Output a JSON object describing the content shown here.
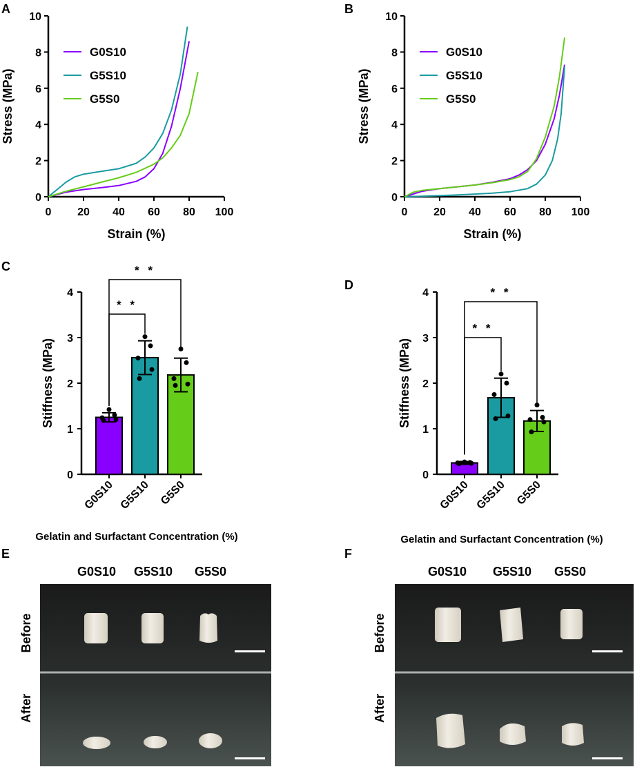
{
  "panel_labels": [
    "A",
    "B",
    "C",
    "D",
    "E",
    "F"
  ],
  "colors": {
    "G0S10": "#8a00ff",
    "G5S10": "#1a9ba1",
    "G5S0": "#66cc1a"
  },
  "chart_data": [
    {
      "id": "A",
      "type": "line",
      "xlabel": "Strain (%)",
      "ylabel": "Stress (MPa)",
      "xlim": [
        0,
        100
      ],
      "ylim": [
        0,
        10
      ],
      "xticks": [
        "0",
        "20",
        "40",
        "60",
        "80",
        "100"
      ],
      "yticks": [
        "0",
        "2",
        "4",
        "6",
        "8",
        "10"
      ],
      "legend_position": "top-left",
      "series": [
        {
          "name": "G0S10",
          "color": "#8a00ff",
          "x": [
            0,
            10,
            20,
            30,
            40,
            50,
            55,
            60,
            65,
            70,
            75,
            80
          ],
          "y": [
            0,
            0.25,
            0.4,
            0.5,
            0.62,
            0.85,
            1.1,
            1.55,
            2.4,
            3.9,
            6.0,
            8.6
          ]
        },
        {
          "name": "G5S10",
          "color": "#1a9ba1",
          "x": [
            0,
            5,
            10,
            15,
            20,
            30,
            40,
            50,
            55,
            60,
            65,
            70,
            75,
            79
          ],
          "y": [
            0,
            0.4,
            0.8,
            1.1,
            1.25,
            1.4,
            1.55,
            1.85,
            2.2,
            2.7,
            3.5,
            4.8,
            6.8,
            9.4
          ]
        },
        {
          "name": "G5S0",
          "color": "#66cc1a",
          "x": [
            0,
            10,
            20,
            30,
            40,
            50,
            60,
            65,
            70,
            75,
            80,
            85
          ],
          "y": [
            0,
            0.3,
            0.55,
            0.8,
            1.05,
            1.35,
            1.8,
            2.15,
            2.7,
            3.4,
            4.6,
            6.9
          ]
        }
      ]
    },
    {
      "id": "B",
      "type": "line",
      "xlabel": "Strain (%)",
      "ylabel": "Stress (MPa)",
      "xlim": [
        0,
        100
      ],
      "ylim": [
        0,
        10
      ],
      "xticks": [
        "0",
        "20",
        "40",
        "60",
        "80",
        "100"
      ],
      "yticks": [
        "0",
        "2",
        "4",
        "6",
        "8",
        "10"
      ],
      "legend_position": "top-left",
      "series": [
        {
          "name": "G0S10",
          "color": "#8a00ff",
          "x": [
            0,
            10,
            20,
            30,
            40,
            50,
            60,
            65,
            70,
            75,
            80,
            85,
            88,
            91
          ],
          "y": [
            0,
            0.3,
            0.45,
            0.55,
            0.65,
            0.8,
            1.0,
            1.2,
            1.5,
            2.0,
            2.9,
            4.3,
            5.6,
            7.3
          ]
        },
        {
          "name": "G5S10",
          "color": "#1a9ba1",
          "x": [
            0,
            10,
            20,
            30,
            40,
            50,
            60,
            70,
            75,
            80,
            84,
            87,
            89,
            91
          ],
          "y": [
            0,
            0.03,
            0.06,
            0.1,
            0.15,
            0.2,
            0.28,
            0.45,
            0.7,
            1.2,
            2.0,
            3.2,
            4.6,
            7.2
          ]
        },
        {
          "name": "G5S0",
          "color": "#66cc1a",
          "x": [
            0,
            5,
            10,
            20,
            30,
            40,
            50,
            60,
            65,
            70,
            75,
            80,
            85,
            88,
            91
          ],
          "y": [
            0,
            0.25,
            0.35,
            0.45,
            0.55,
            0.65,
            0.78,
            0.95,
            1.1,
            1.4,
            2.1,
            3.3,
            5.0,
            6.6,
            8.8
          ]
        }
      ]
    },
    {
      "id": "C",
      "type": "bar",
      "xlabel": "Gelatin and Surfactant Concentration (%)",
      "ylabel": "Stiffness (MPa)",
      "ylim": [
        0,
        4
      ],
      "yticks": [
        "0",
        "1",
        "2",
        "3",
        "4"
      ],
      "categories": [
        "G0S10",
        "G5S10",
        "G5S0"
      ],
      "values": [
        1.25,
        2.56,
        2.18
      ],
      "errors": [
        0.1,
        0.37,
        0.37
      ],
      "points": [
        [
          1.42,
          1.3,
          1.24,
          1.2,
          1.18
        ],
        [
          3.02,
          2.82,
          2.55,
          2.3,
          2.1
        ],
        [
          2.75,
          2.45,
          2.1,
          1.98,
          1.95
        ]
      ],
      "significance": [
        {
          "from": 0,
          "to": 1,
          "label": "* *"
        },
        {
          "from": 0,
          "to": 2,
          "label": "* *"
        }
      ]
    },
    {
      "id": "D",
      "type": "bar",
      "xlabel": "Gelatin and Surfactant Concentration (%)",
      "ylabel": "Stiffness (MPa)",
      "ylim": [
        0,
        4
      ],
      "yticks": [
        "0",
        "1",
        "2",
        "3",
        "4"
      ],
      "categories": [
        "G0S10",
        "G5S10",
        "G5S0"
      ],
      "values": [
        0.25,
        1.68,
        1.17
      ],
      "errors": [
        0.03,
        0.43,
        0.23
      ],
      "points": [
        [
          0.27,
          0.26,
          0.25,
          0.24,
          0.23
        ],
        [
          2.2,
          2.0,
          1.75,
          1.28,
          1.22
        ],
        [
          1.52,
          1.25,
          1.2,
          1.15,
          0.93
        ]
      ],
      "significance": [
        {
          "from": 0,
          "to": 1,
          "label": "* *"
        },
        {
          "from": 0,
          "to": 2,
          "label": "* *"
        }
      ]
    }
  ],
  "photos": [
    {
      "id": "E",
      "columns": [
        "G0S10",
        "G5S10",
        "G5S0"
      ],
      "rows": [
        "Before",
        "After"
      ]
    },
    {
      "id": "F",
      "columns": [
        "G0S10",
        "G5S10",
        "G5S0"
      ],
      "rows": [
        "Before",
        "After"
      ]
    }
  ]
}
